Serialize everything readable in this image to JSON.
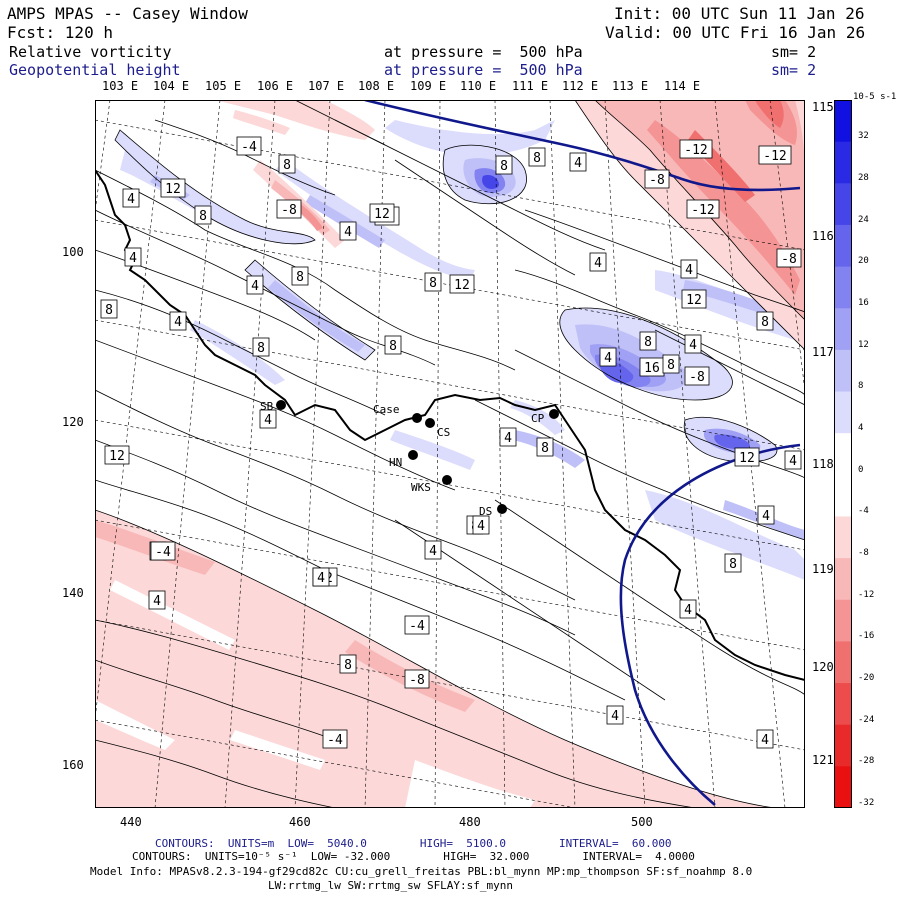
{
  "header": {
    "line1_left": "AMPS MPAS -- Casey Window",
    "line1_right": "Init: 00 UTC Sun 11 Jan 26",
    "line2_left": "Fcst: 120 h",
    "line2_right": "Valid: 00 UTC Fri 16 Jan 26",
    "field1": "Relative vorticity",
    "field1_level": "at pressure =  500 hPa",
    "field1_sm": "sm= 2",
    "field2": "Geopotential height",
    "field2_level": "at pressure =  500 hPa",
    "field2_sm": "sm= 2"
  },
  "top_longitudes": [
    "103 E",
    "104 E",
    "105 E",
    "106 E",
    "107 E",
    "108 E",
    "109 E",
    "110 E",
    "111 E",
    "112 E",
    "113 E",
    "114 E"
  ],
  "right_longitudes": [
    "115 E",
    "116 E",
    "117 E",
    "118 E",
    "119 E",
    "120 E",
    "121 E"
  ],
  "grid_x_ticks": [
    "440",
    "460",
    "480",
    "500"
  ],
  "grid_y_ticks": [
    "100",
    "120",
    "140",
    "160"
  ],
  "stations": [
    {
      "label": "SB"
    },
    {
      "label": "Case"
    },
    {
      "label": "CS"
    },
    {
      "label": "HN"
    },
    {
      "label": "WKS"
    },
    {
      "label": "DS"
    },
    {
      "label": "CP"
    }
  ],
  "colorbar": {
    "units": "10-5 s-1",
    "labels": [
      "32",
      "28",
      "24",
      "20",
      "16",
      "12",
      "8",
      "4",
      "0",
      "-4",
      "-8",
      "-12",
      "-16",
      "-20",
      "-24",
      "-28",
      "-32"
    ],
    "colors": [
      "#1010e0",
      "#2a2ae4",
      "#4646e8",
      "#6464ec",
      "#8282f0",
      "#a0a0f4",
      "#c0c0f8",
      "#dcdcfc",
      "#ffffff",
      "#ffffff",
      "#fcd8d8",
      "#f8b8b8",
      "#f49494",
      "#f07070",
      "#ec4c4c",
      "#e82a2a",
      "#e81010"
    ]
  },
  "contour_labels": [
    "-4",
    "8",
    "8",
    "12",
    "12",
    "8",
    "4",
    "-12",
    "-12",
    "-8",
    "4",
    "-8",
    "8",
    "12",
    "4",
    "-12",
    "-8",
    "4",
    "4",
    "8",
    "4",
    "8",
    "12",
    "4",
    "12",
    "8",
    "4",
    "8",
    "8",
    "4",
    "8",
    "8",
    "-8",
    "4",
    "16",
    "8",
    "4",
    "4",
    "8",
    "12",
    "12",
    "4",
    "4",
    "8",
    "4",
    "8",
    "12",
    "4",
    "4",
    "-4",
    "4",
    "8",
    "4",
    "-8",
    "4",
    "-4",
    "4",
    "4",
    "-4"
  ],
  "footer": {
    "line1": "CONTOURS:  UNITS=m  LOW=  5040.0        HIGH=  5100.0        INTERVAL=  60.000",
    "line2": "CONTOURS:  UNITS=10⁻⁵ s⁻¹  LOW= -32.000        HIGH=  32.000        INTERVAL=  4.0000",
    "line3": "Model Info: MPASv8.2.3-194-gf29cd82c CU:cu_grell_freitas PBL:bl_mynn MP:mp_thompson SF:sf_noahmp 8.0",
    "line4": "LW:rrtmg_lw SW:rrtmg_sw SFLAY:sf_mynn"
  }
}
